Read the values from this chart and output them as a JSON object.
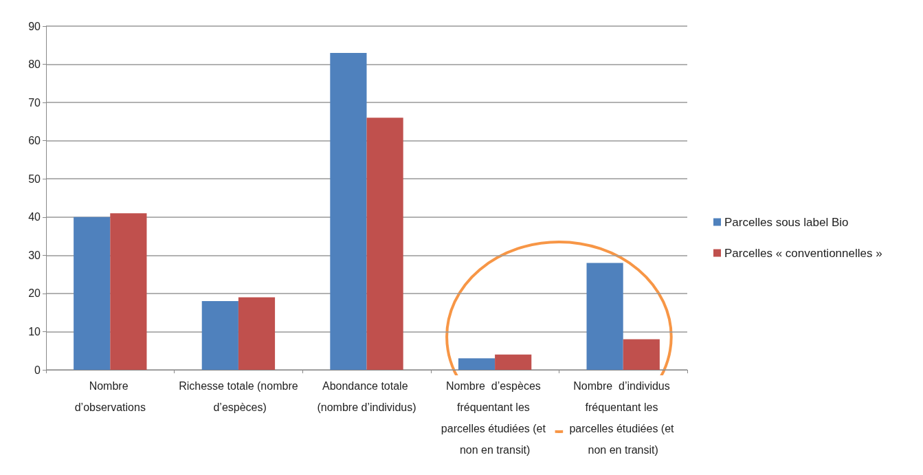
{
  "chart_data": {
    "type": "bar",
    "categories": [
      "Nombre d’observations",
      "Richesse totale (nombre d’espèces)",
      "Abondance totale (nombre d’individus)",
      "Nombre  d’espèces fréquentant les parcelles étudiées (et non en transit)",
      "Nombre  d’individus fréquentant les parcelles étudiées (et non en transit)"
    ],
    "series": [
      {
        "name": "Parcelles sous label Bio",
        "color": "#4f81bd",
        "values": [
          40,
          18,
          83,
          3,
          28
        ]
      },
      {
        "name": "Parcelles « conventionnelles »",
        "color": "#c0504d",
        "values": [
          41,
          19,
          66,
          4,
          8
        ]
      }
    ],
    "ylim": [
      0,
      90
    ],
    "yticks": [
      0,
      10,
      20,
      30,
      40,
      50,
      60,
      70,
      80,
      90
    ],
    "grid": "y",
    "legend": "right"
  }
}
